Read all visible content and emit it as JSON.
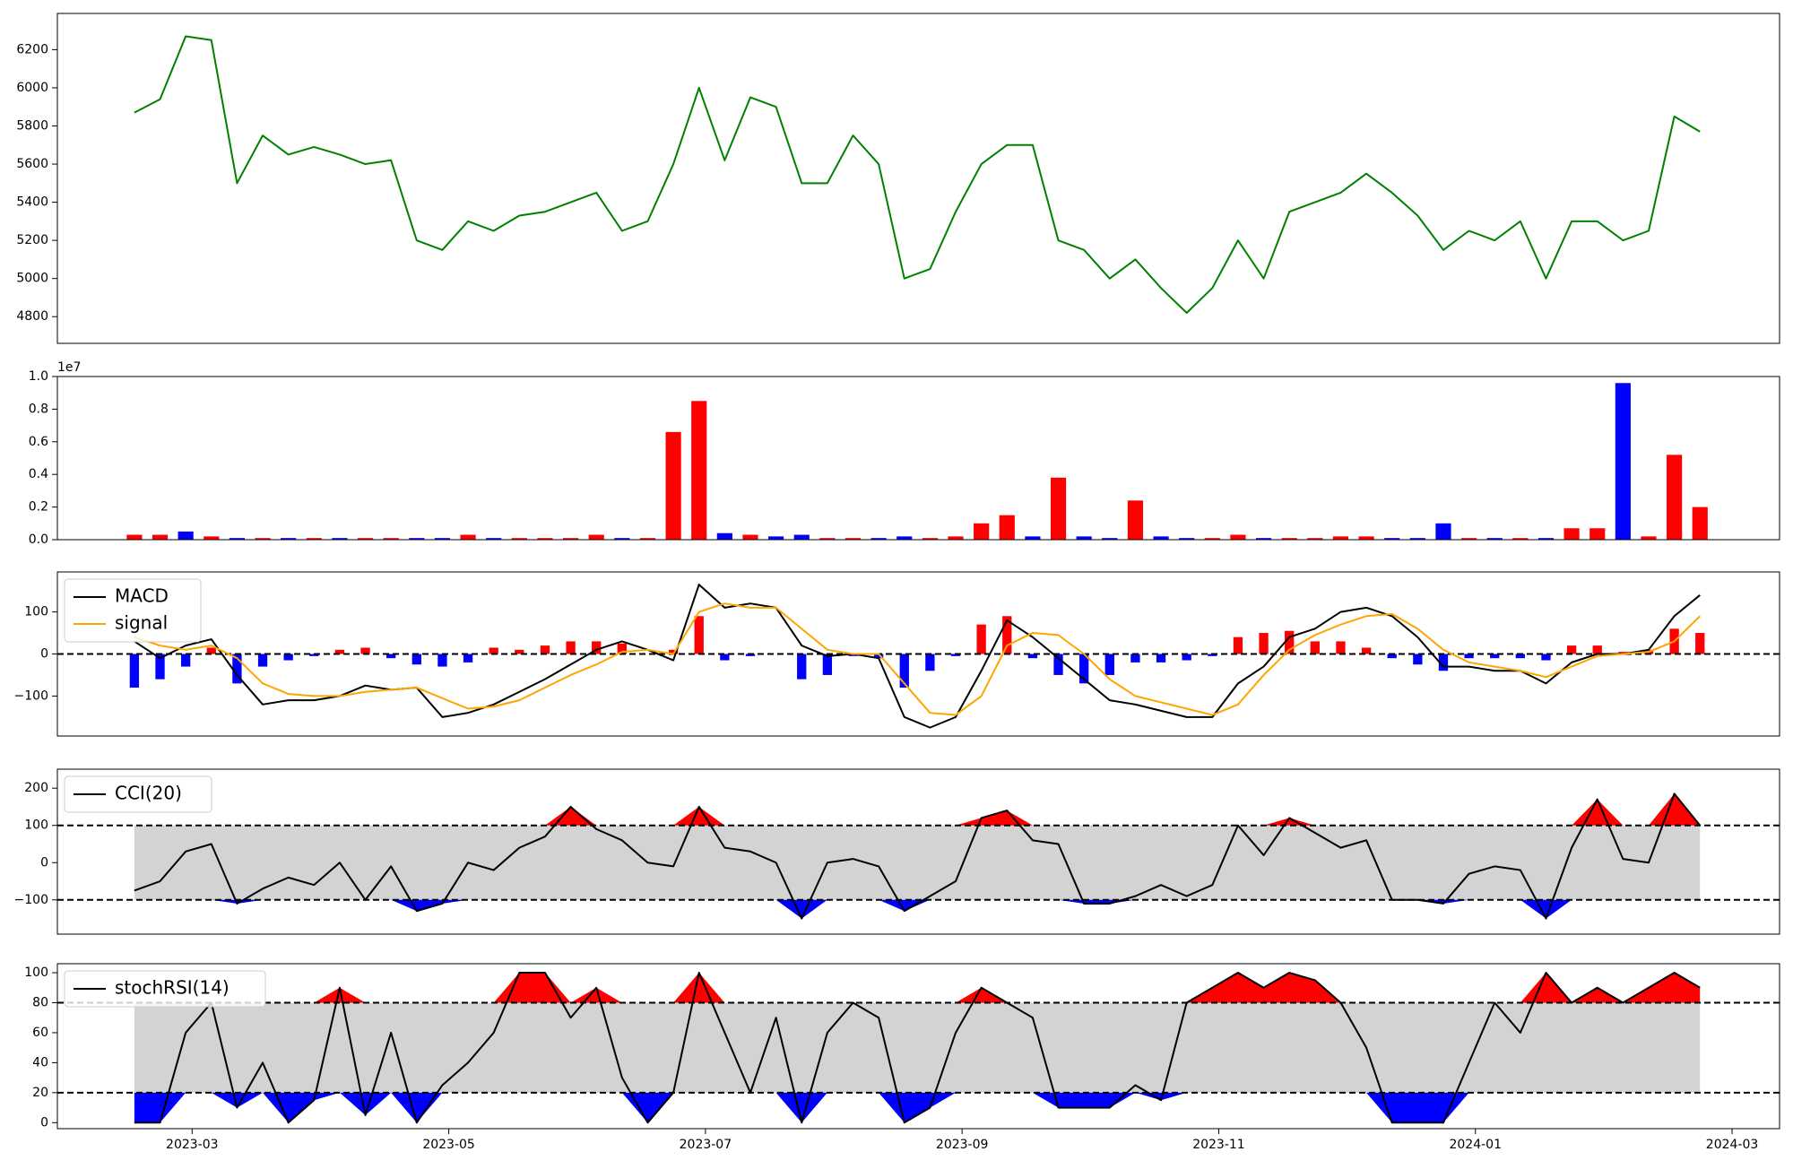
{
  "chart_data": [
    {
      "type": "line",
      "x": [
        1.55,
        1.75,
        1.95,
        2.15,
        2.35,
        2.55,
        2.75,
        2.95,
        3.15,
        3.35,
        3.55,
        3.75,
        3.95,
        4.15,
        4.35,
        4.55,
        4.75,
        4.95,
        5.15,
        5.35,
        5.55,
        5.75,
        5.95,
        6.15,
        6.35,
        6.55,
        6.75,
        6.95,
        7.15,
        7.35,
        7.55,
        7.75,
        7.95,
        8.15,
        8.35,
        8.55,
        8.75,
        8.95,
        9.15,
        9.35,
        9.55,
        9.75,
        9.95,
        10.15,
        10.35,
        10.55,
        10.75,
        10.95,
        11.15,
        11.35,
        11.55,
        11.75,
        11.95,
        12.15,
        12.35,
        12.55,
        12.75,
        12.95,
        13.15,
        13.35,
        13.55,
        13.75
      ],
      "values": [
        5870,
        5940,
        6270,
        6250,
        5500,
        5750,
        5650,
        5690,
        5650,
        5600,
        5620,
        5200,
        5150,
        5300,
        5250,
        5330,
        5350,
        5400,
        5450,
        5250,
        5300,
        5600,
        6000,
        5620,
        5950,
        5900,
        5500,
        5500,
        5750,
        5600,
        5000,
        5050,
        5350,
        5600,
        5700,
        5700,
        5200,
        5150,
        5000,
        5100,
        4950,
        4820,
        4950,
        5200,
        5000,
        5350,
        5400,
        5450,
        5550,
        5450,
        5330,
        5150,
        5250,
        5200,
        5300,
        5000,
        5300,
        5300,
        5200,
        5250,
        5850,
        5770
      ],
      "color": "#008000",
      "xlim": [
        0.95,
        14.37
      ],
      "ylim": [
        4660,
        6390
      ],
      "yticks": [
        4800,
        5000,
        5200,
        5400,
        5600,
        5800,
        6000,
        6200
      ]
    },
    {
      "type": "bar",
      "x": [
        1.55,
        1.75,
        1.95,
        2.15,
        2.35,
        2.55,
        2.75,
        2.95,
        3.15,
        3.35,
        3.55,
        3.75,
        3.95,
        4.15,
        4.35,
        4.55,
        4.75,
        4.95,
        5.15,
        5.35,
        5.55,
        5.75,
        5.95,
        6.15,
        6.35,
        6.55,
        6.75,
        6.95,
        7.15,
        7.35,
        7.55,
        7.75,
        7.95,
        8.15,
        8.35,
        8.55,
        8.75,
        8.95,
        9.15,
        9.35,
        9.55,
        9.75,
        9.95,
        10.15,
        10.35,
        10.55,
        10.75,
        10.95,
        11.15,
        11.35,
        11.55,
        11.75,
        11.95,
        12.15,
        12.35,
        12.55,
        12.75,
        12.95,
        13.15,
        13.35,
        13.55,
        13.75
      ],
      "values": [
        0.03,
        0.03,
        0.05,
        0.02,
        0.01,
        0.01,
        0.01,
        0.01,
        0.01,
        0.01,
        0.01,
        0.01,
        0.01,
        0.03,
        0.01,
        0.01,
        0.01,
        0.01,
        0.03,
        0.01,
        0.01,
        0.66,
        0.85,
        0.04,
        0.03,
        0.02,
        0.03,
        0.01,
        0.01,
        0.01,
        0.02,
        0.01,
        0.02,
        0.1,
        0.15,
        0.02,
        0.38,
        0.02,
        0.01,
        0.24,
        0.02,
        0.01,
        0.01,
        0.03,
        0.01,
        0.01,
        0.01,
        0.02,
        0.02,
        0.01,
        0.01,
        0.1,
        0.01,
        0.01,
        0.01,
        0.01,
        0.07,
        0.07,
        0.96,
        0.02,
        0.52,
        0.2
      ],
      "colors": [
        "red",
        "red",
        "blue",
        "red",
        "blue",
        "red",
        "blue",
        "red",
        "blue",
        "red",
        "red",
        "blue",
        "blue",
        "red",
        "blue",
        "red",
        "red",
        "red",
        "red",
        "blue",
        "red",
        "red",
        "red",
        "blue",
        "red",
        "blue",
        "blue",
        "red",
        "red",
        "blue",
        "blue",
        "red",
        "red",
        "red",
        "red",
        "blue",
        "red",
        "blue",
        "blue",
        "red",
        "blue",
        "blue",
        "red",
        "red",
        "blue",
        "red",
        "red",
        "red",
        "red",
        "blue",
        "blue",
        "blue",
        "red",
        "blue",
        "red",
        "blue",
        "red",
        "red",
        "blue",
        "red",
        "red",
        "red"
      ],
      "offset_label": "1e7",
      "xlim": [
        0.95,
        14.37
      ],
      "ylim": [
        0,
        1.0
      ],
      "yticks": [
        {
          "value": 0,
          "label": "0.0"
        },
        {
          "value": 0.2,
          "label": "0.2"
        },
        {
          "value": 0.4,
          "label": "0.4"
        },
        {
          "value": 0.6,
          "label": "0.6"
        },
        {
          "value": 0.8,
          "label": "0.8"
        },
        {
          "value": 1.0,
          "label": "1.0"
        }
      ]
    },
    {
      "type": "line",
      "x": [
        1.55,
        1.75,
        1.95,
        2.15,
        2.35,
        2.55,
        2.75,
        2.95,
        3.15,
        3.35,
        3.55,
        3.75,
        3.95,
        4.15,
        4.35,
        4.55,
        4.75,
        4.95,
        5.15,
        5.35,
        5.55,
        5.75,
        5.95,
        6.15,
        6.35,
        6.55,
        6.75,
        6.95,
        7.15,
        7.35,
        7.55,
        7.75,
        7.95,
        8.15,
        8.35,
        8.55,
        8.75,
        8.95,
        9.15,
        9.35,
        9.55,
        9.75,
        9.95,
        10.15,
        10.35,
        10.55,
        10.75,
        10.95,
        11.15,
        11.35,
        11.55,
        11.75,
        11.95,
        12.15,
        12.35,
        12.55,
        12.75,
        12.95,
        13.15,
        13.35,
        13.55,
        13.75
      ],
      "series": [
        {
          "name": "MACD",
          "color": "#000000",
          "values": [
            30,
            -10,
            20,
            35,
            -50,
            -120,
            -110,
            -110,
            -100,
            -75,
            -85,
            -80,
            -150,
            -140,
            -120,
            -90,
            -60,
            -25,
            10,
            30,
            10,
            -15,
            165,
            110,
            120,
            110,
            20,
            -5,
            0,
            -10,
            -150,
            -175,
            -150,
            -40,
            80,
            40,
            -10,
            -60,
            -110,
            -120,
            -135,
            -150,
            -150,
            -70,
            -30,
            40,
            60,
            100,
            110,
            90,
            40,
            -30,
            -30,
            -40,
            -40,
            -70,
            -20,
            0,
            0,
            10,
            90,
            140
          ]
        },
        {
          "name": "signal",
          "color": "#ffa500",
          "values": [
            40,
            20,
            10,
            20,
            -10,
            -70,
            -95,
            -100,
            -100,
            -90,
            -85,
            -80,
            -105,
            -130,
            -125,
            -110,
            -80,
            -50,
            -25,
            5,
            10,
            0,
            100,
            120,
            110,
            110,
            60,
            10,
            0,
            0,
            -70,
            -140,
            -145,
            -100,
            20,
            50,
            45,
            0,
            -60,
            -100,
            -115,
            -130,
            -145,
            -120,
            -50,
            10,
            45,
            70,
            90,
            95,
            60,
            10,
            -20,
            -30,
            -40,
            -55,
            -30,
            -5,
            0,
            5,
            30,
            90
          ]
        }
      ],
      "histogram": {
        "values": [
          -80,
          -60,
          -30,
          15,
          -70,
          -30,
          -15,
          -5,
          10,
          15,
          -10,
          -25,
          -30,
          -20,
          15,
          10,
          20,
          30,
          30,
          25,
          0,
          10,
          90,
          -15,
          -5,
          0,
          -60,
          -50,
          -5,
          -10,
          -80,
          -40,
          -5,
          70,
          90,
          -10,
          -50,
          -70,
          -50,
          -20,
          -20,
          -15,
          -5,
          40,
          50,
          55,
          30,
          30,
          15,
          -10,
          -25,
          -40,
          -10,
          -10,
          -10,
          -15,
          20,
          20,
          5,
          10,
          60,
          50
        ],
        "positive_color": "#ff0000",
        "negative_color": "#0000ff"
      },
      "hline": 0,
      "legend": "upper left",
      "xlim": [
        0.95,
        14.37
      ],
      "ylim": [
        -195,
        195
      ],
      "yticks": [
        {
          "value": -100,
          "label": "−100"
        },
        0,
        100
      ]
    },
    {
      "type": "band",
      "x": [
        1.55,
        1.75,
        1.95,
        2.15,
        2.35,
        2.55,
        2.75,
        2.95,
        3.15,
        3.35,
        3.55,
        3.75,
        3.95,
        4.15,
        4.35,
        4.55,
        4.75,
        4.95,
        5.15,
        5.35,
        5.55,
        5.75,
        5.95,
        6.15,
        6.35,
        6.55,
        6.75,
        6.95,
        7.15,
        7.35,
        7.55,
        7.75,
        7.95,
        8.15,
        8.35,
        8.55,
        8.75,
        8.95,
        9.15,
        9.35,
        9.55,
        9.75,
        9.95,
        10.15,
        10.35,
        10.55,
        10.75,
        10.95,
        11.15,
        11.35,
        11.55,
        11.75,
        11.95,
        12.15,
        12.35,
        12.55,
        12.75,
        12.95,
        13.15,
        13.35,
        13.55,
        13.75
      ],
      "series": [
        {
          "name": "CCI(20)",
          "color": "#000000",
          "values": [
            -75,
            -50,
            30,
            50,
            -110,
            -70,
            -40,
            -60,
            0,
            -100,
            -10,
            -130,
            -110,
            0,
            -20,
            40,
            70,
            150,
            90,
            60,
            0,
            -10,
            150,
            40,
            30,
            0,
            -150,
            0,
            10,
            -10,
            -130,
            -90,
            -50,
            120,
            140,
            60,
            50,
            -110,
            -110,
            -90,
            -60,
            -90,
            -60,
            100,
            20,
            120,
            80,
            40,
            60,
            -100,
            -100,
            -110,
            -30,
            -10,
            -20,
            -150,
            40,
            170,
            10,
            0,
            185,
            100
          ]
        }
      ],
      "bands": [
        -100,
        100
      ],
      "band_fill": "#d3d3d3",
      "above_color": "#ff0000",
      "below_color": "#0000ff",
      "legend": "upper left",
      "xlim": [
        0.95,
        14.37
      ],
      "ylim": [
        -192,
        251
      ],
      "yticks": [
        {
          "value": -100,
          "label": "−100"
        },
        0,
        100,
        200
      ]
    },
    {
      "type": "band",
      "x": [
        1.55,
        1.75,
        1.95,
        2.15,
        2.35,
        2.55,
        2.75,
        2.95,
        3.15,
        3.35,
        3.55,
        3.75,
        3.95,
        4.15,
        4.35,
        4.55,
        4.75,
        4.95,
        5.15,
        5.35,
        5.55,
        5.75,
        5.95,
        6.15,
        6.35,
        6.55,
        6.75,
        6.95,
        7.15,
        7.35,
        7.55,
        7.75,
        7.95,
        8.15,
        8.35,
        8.55,
        8.75,
        8.95,
        9.15,
        9.35,
        9.55,
        9.75,
        9.95,
        10.15,
        10.35,
        10.55,
        10.75,
        10.95,
        11.15,
        11.35,
        11.55,
        11.75,
        11.95,
        12.15,
        12.35,
        12.55,
        12.75,
        12.95,
        13.15,
        13.35,
        13.55,
        13.75
      ],
      "series": [
        {
          "name": "stochRSI(14)",
          "color": "#000000",
          "values": [
            0,
            0,
            60,
            80,
            10,
            40,
            0,
            15,
            90,
            5,
            60,
            0,
            25,
            40,
            60,
            100,
            100,
            70,
            90,
            30,
            0,
            20,
            100,
            60,
            20,
            70,
            0,
            60,
            80,
            70,
            0,
            10,
            60,
            90,
            80,
            70,
            10,
            10,
            10,
            25,
            15,
            80,
            90,
            100,
            90,
            100,
            95,
            80,
            50,
            0,
            0,
            0,
            40,
            80,
            60,
            100,
            80,
            90,
            80,
            90,
            100,
            90
          ]
        }
      ],
      "bands": [
        20,
        80
      ],
      "band_fill": "#d3d3d3",
      "above_color": "#ff0000",
      "below_color": "#0000ff",
      "legend": "upper left",
      "xlim": [
        0.95,
        14.37
      ],
      "ylim": [
        -4,
        106
      ],
      "yticks": [
        0,
        20,
        40,
        60,
        80,
        100
      ],
      "xticks": [
        {
          "value": 2,
          "label": "2023-03"
        },
        {
          "value": 4,
          "label": "2023-05"
        },
        {
          "value": 6,
          "label": "2023-07"
        },
        {
          "value": 8,
          "label": "2023-09"
        },
        {
          "value": 10,
          "label": "2023-11"
        },
        {
          "value": 12,
          "label": "2024-01"
        },
        {
          "value": 14,
          "label": "2024-03"
        }
      ]
    }
  ]
}
